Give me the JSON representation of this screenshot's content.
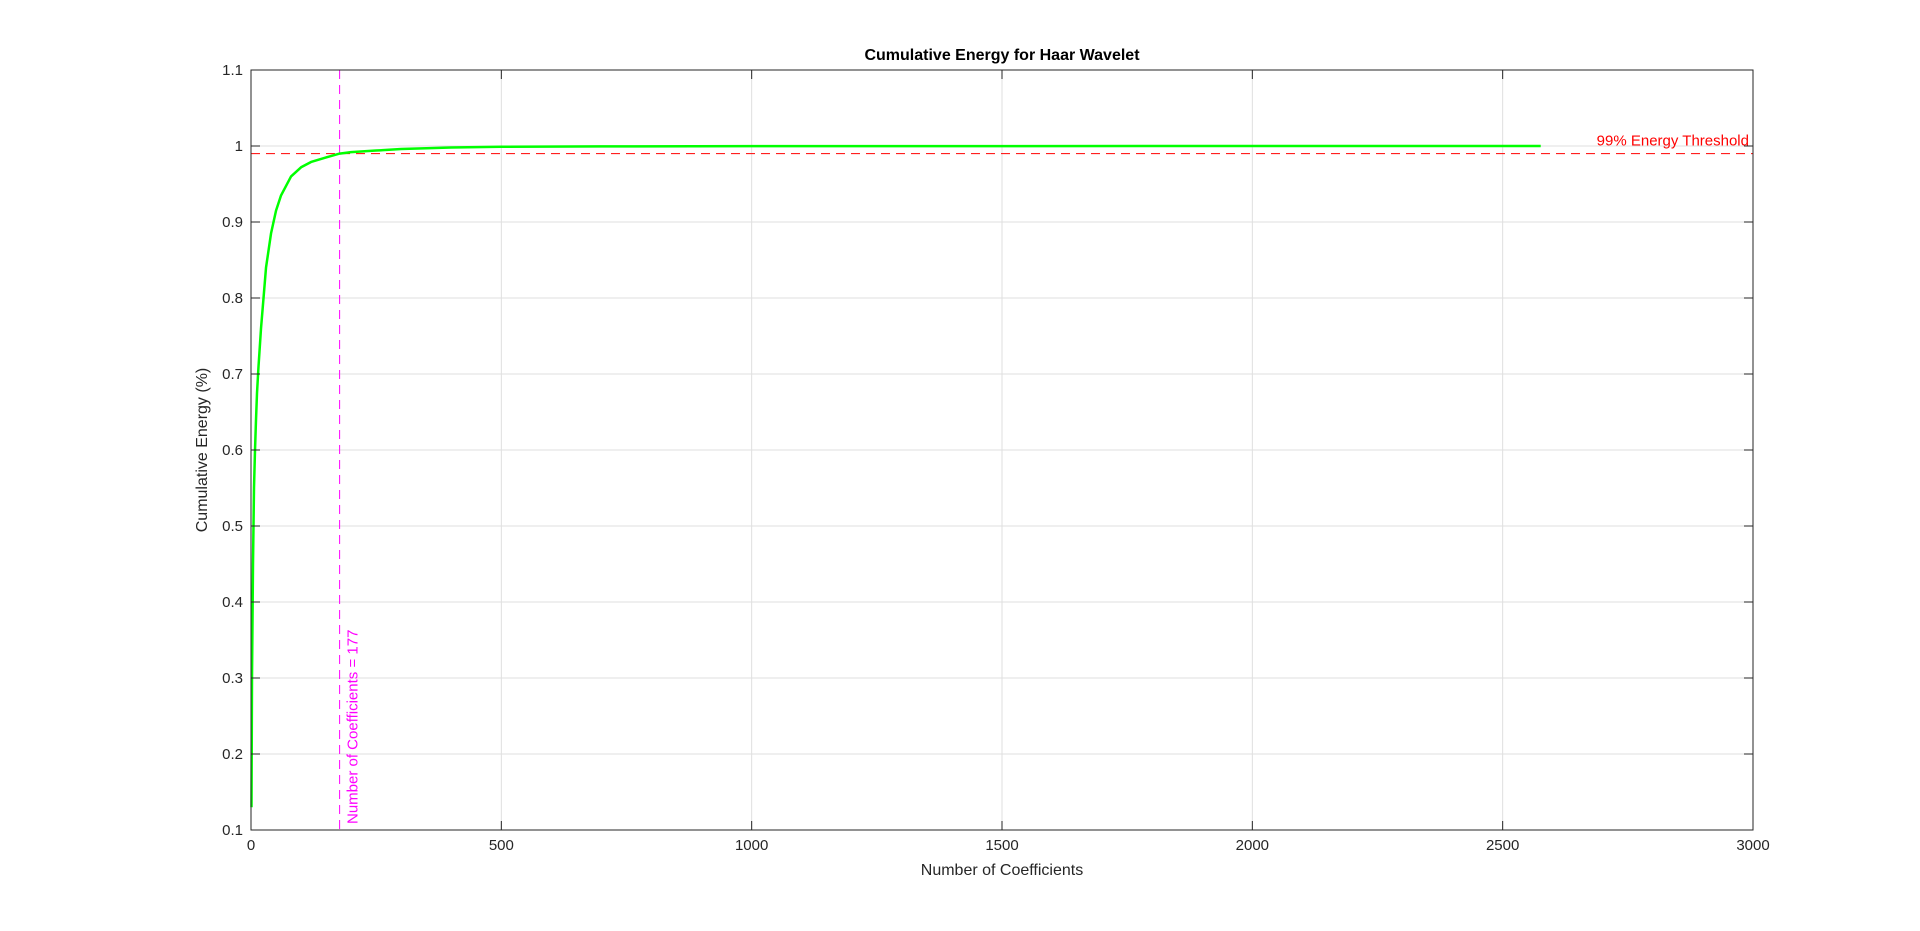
{
  "chart_data": {
    "type": "line",
    "title": "Cumulative Energy for Haar Wavelet",
    "xlabel": "Number of Coefficients",
    "ylabel": "Cumulative Energy (%)",
    "xlim": [
      0,
      3000
    ],
    "ylim": [
      0.1,
      1.1
    ],
    "xticks": [
      0,
      500,
      1000,
      1500,
      2000,
      2500,
      3000
    ],
    "xtick_labels": [
      "0",
      "500",
      "1000",
      "1500",
      "2000",
      "2500",
      "3000"
    ],
    "yticks": [
      0.1,
      0.2,
      0.3,
      0.4,
      0.5,
      0.6,
      0.7,
      0.8,
      0.9,
      1.0,
      1.1
    ],
    "ytick_labels": [
      "0.1",
      "0.2",
      "0.3",
      "0.4",
      "0.5",
      "0.6",
      "0.7",
      "0.8",
      "0.9",
      "1",
      "1.1"
    ],
    "grid": true,
    "series": [
      {
        "color": "#00ff00",
        "x": [
          1,
          2,
          4,
          6,
          8,
          10,
          12,
          15,
          20,
          25,
          30,
          40,
          50,
          60,
          80,
          100,
          120,
          150,
          177,
          200,
          250,
          300,
          400,
          500,
          700,
          1000,
          1500,
          2000,
          2500,
          2576
        ],
        "values": [
          0.13,
          0.3,
          0.45,
          0.55,
          0.6,
          0.64,
          0.675,
          0.71,
          0.76,
          0.8,
          0.84,
          0.885,
          0.915,
          0.935,
          0.96,
          0.972,
          0.979,
          0.985,
          0.99,
          0.992,
          0.994,
          0.996,
          0.998,
          0.999,
          0.9995,
          0.9998,
          0.9999,
          1.0,
          1.0,
          1.0
        ]
      }
    ],
    "threshold": {
      "y": 0.99,
      "label": "99% Energy Threshold",
      "color": "#ff0000"
    },
    "marker": {
      "x": 177,
      "label": "Number of Coefficients = 177",
      "color": "#ff00ff"
    }
  }
}
